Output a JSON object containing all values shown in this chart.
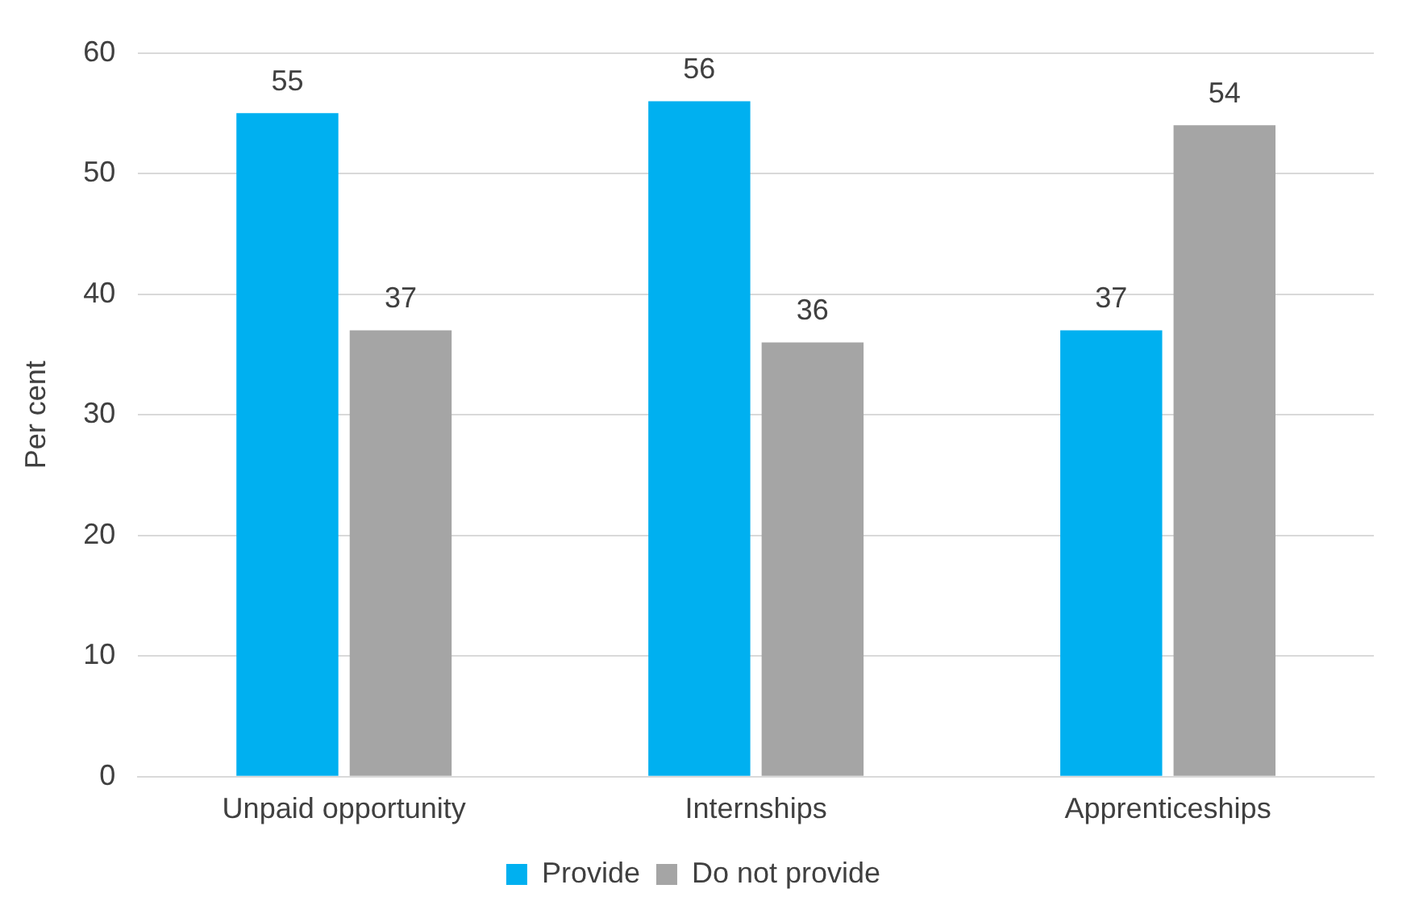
{
  "chart_data": {
    "type": "bar",
    "ylabel": "Per cent",
    "categories": [
      "Unpaid opportunity",
      "Internships",
      "Apprenticeships"
    ],
    "series": [
      {
        "name": "Provide",
        "color": "#00b0f0",
        "values": [
          55,
          56,
          37
        ]
      },
      {
        "name": "Do not provide",
        "color": "#a5a5a5",
        "values": [
          37,
          36,
          54
        ]
      }
    ],
    "ylim": [
      0,
      60
    ],
    "yticks": [
      0,
      10,
      20,
      30,
      40,
      50,
      60
    ],
    "grid": "y",
    "legend": "bottom",
    "data_labels": true
  }
}
